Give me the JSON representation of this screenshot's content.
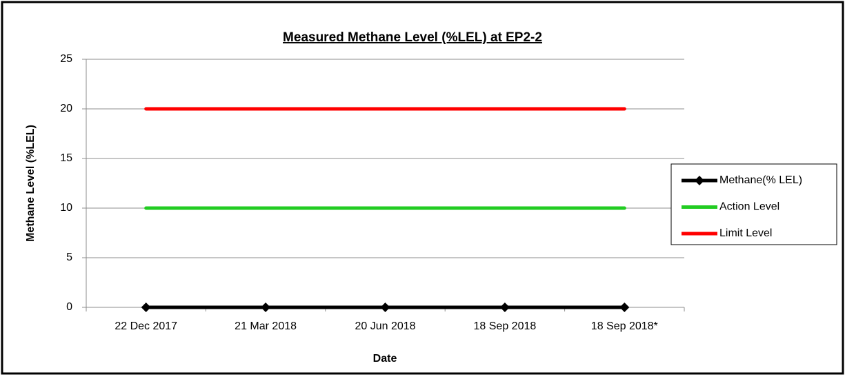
{
  "chart_data": {
    "type": "line",
    "title": "Measured Methane Level (%LEL) at EP2-2",
    "x_label": "Date",
    "y_label": "Methane Level (%LEL)",
    "categories": [
      "22 Dec 2017",
      "21 Mar 2018",
      "20 Jun 2018",
      "18 Sep 2018",
      "18 Sep 2018*"
    ],
    "series": [
      {
        "name": "Methane(% LEL)",
        "color": "#000000",
        "marker": "diamond",
        "values": [
          0,
          0,
          0,
          0,
          0
        ]
      },
      {
        "name": "Action Level",
        "color": "#22cc22",
        "values": [
          10,
          10,
          10,
          10,
          10
        ]
      },
      {
        "name": "Limit Level",
        "color": "#ff0000",
        "values": [
          20,
          20,
          20,
          20,
          20
        ]
      }
    ],
    "ylim": [
      0,
      25
    ],
    "yticks": [
      0,
      5,
      10,
      15,
      20,
      25
    ],
    "grid": true,
    "legend": "right"
  }
}
